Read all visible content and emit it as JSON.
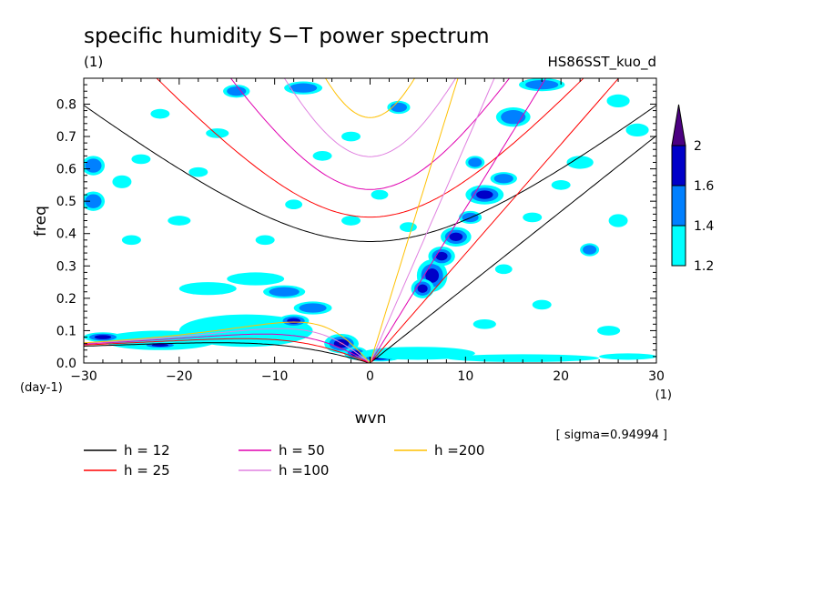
{
  "chart_data": {
    "type": "heatmap",
    "title": "specific humidity S−T power spectrum",
    "subtitle_left": "(1)",
    "subtitle_right": "HS86SST_kuo_d",
    "xlabel": "wvn",
    "ylabel": "freq",
    "x_unit": "(1)",
    "y_unit": "(day-1)",
    "sigma_note": "[ sigma=0.94994 ]",
    "xlim": [
      -30,
      30
    ],
    "ylim": [
      0,
      0.88
    ],
    "x_ticks": [
      {
        "v": -30,
        "label": "−30"
      },
      {
        "v": -20,
        "label": "−20"
      },
      {
        "v": -10,
        "label": "−10"
      },
      {
        "v": 0,
        "label": "0"
      },
      {
        "v": 10,
        "label": "10"
      },
      {
        "v": 20,
        "label": "20"
      },
      {
        "v": 30,
        "label": "30"
      }
    ],
    "y_ticks": [
      {
        "v": 0.0,
        "label": "0.0"
      },
      {
        "v": 0.1,
        "label": "0.1"
      },
      {
        "v": 0.2,
        "label": "0.2"
      },
      {
        "v": 0.3,
        "label": "0.3"
      },
      {
        "v": 0.4,
        "label": "0.4"
      },
      {
        "v": 0.5,
        "label": "0.5"
      },
      {
        "v": 0.6,
        "label": "0.6"
      },
      {
        "v": 0.7,
        "label": "0.7"
      },
      {
        "v": 0.8,
        "label": "0.8"
      }
    ],
    "colorbar": {
      "levels": [
        1.2,
        1.4,
        1.6,
        2
      ],
      "labels": [
        "1.2",
        "1.4",
        "1.6",
        "2"
      ],
      "colors": [
        "#00ffff",
        "#0080ff",
        "#0000c8",
        "#4b0082"
      ]
    },
    "dispersion_curves": [
      {
        "name": "h = 12",
        "h": 12,
        "color": "#000000"
      },
      {
        "name": "h = 25",
        "h": 25,
        "color": "#ff0000"
      },
      {
        "name": "h = 50",
        "h": 50,
        "color": "#e000b0"
      },
      {
        "name": "h =100",
        "h": 100,
        "color": "#e080e0"
      },
      {
        "name": "h =200",
        "h": 200,
        "color": "#ffc000"
      }
    ],
    "blobs": [
      {
        "x": 6.5,
        "y": 0.27,
        "rx": 1.6,
        "ry": 0.05,
        "level": 2
      },
      {
        "x": 5.5,
        "y": 0.23,
        "rx": 1.2,
        "ry": 0.03,
        "level": 2
      },
      {
        "x": 7.5,
        "y": 0.33,
        "rx": 1.4,
        "ry": 0.03,
        "level": 2
      },
      {
        "x": 9.0,
        "y": 0.39,
        "rx": 1.6,
        "ry": 0.03,
        "level": 2
      },
      {
        "x": 12.0,
        "y": 0.52,
        "rx": 2.0,
        "ry": 0.03,
        "level": 2
      },
      {
        "x": 10.5,
        "y": 0.45,
        "rx": 1.2,
        "ry": 0.02,
        "level": 1
      },
      {
        "x": 14.0,
        "y": 0.57,
        "rx": 1.4,
        "ry": 0.02,
        "level": 1
      },
      {
        "x": 11.0,
        "y": 0.62,
        "rx": 1.0,
        "ry": 0.02,
        "level": 1
      },
      {
        "x": 15.0,
        "y": 0.76,
        "rx": 1.8,
        "ry": 0.03,
        "level": 1
      },
      {
        "x": 18.0,
        "y": 0.86,
        "rx": 2.4,
        "ry": 0.02,
        "level": 1
      },
      {
        "x": -13.0,
        "y": 0.1,
        "rx": 7.0,
        "ry": 0.05,
        "level": 0
      },
      {
        "x": -22.0,
        "y": 0.07,
        "rx": 6.0,
        "ry": 0.03,
        "level": 0
      },
      {
        "x": -8.0,
        "y": 0.13,
        "rx": 1.6,
        "ry": 0.02,
        "level": 2
      },
      {
        "x": -9.0,
        "y": 0.22,
        "rx": 2.2,
        "ry": 0.02,
        "level": 1
      },
      {
        "x": -6.0,
        "y": 0.17,
        "rx": 2.0,
        "ry": 0.02,
        "level": 1
      },
      {
        "x": -12.0,
        "y": 0.26,
        "rx": 3.0,
        "ry": 0.02,
        "level": 0
      },
      {
        "x": -17.0,
        "y": 0.23,
        "rx": 3.0,
        "ry": 0.02,
        "level": 0
      },
      {
        "x": -28.0,
        "y": 0.08,
        "rx": 2.0,
        "ry": 0.015,
        "level": 2
      },
      {
        "x": -22.0,
        "y": 0.055,
        "rx": 2.0,
        "ry": 0.01,
        "level": 2
      },
      {
        "x": -3.0,
        "y": 0.06,
        "rx": 1.8,
        "ry": 0.03,
        "level": 3
      },
      {
        "x": -1.5,
        "y": 0.03,
        "rx": 1.2,
        "ry": 0.02,
        "level": 2
      },
      {
        "x": 1.0,
        "y": 0.015,
        "rx": 2.0,
        "ry": 0.01,
        "level": 2
      },
      {
        "x": 5.0,
        "y": 0.03,
        "rx": 6.0,
        "ry": 0.02,
        "level": 0
      },
      {
        "x": 16.0,
        "y": 0.015,
        "rx": 8.0,
        "ry": 0.012,
        "level": 0
      },
      {
        "x": 27.0,
        "y": 0.02,
        "rx": 3.0,
        "ry": 0.01,
        "level": 0
      },
      {
        "x": -14.0,
        "y": 0.84,
        "rx": 1.4,
        "ry": 0.02,
        "level": 1
      },
      {
        "x": -7.0,
        "y": 0.85,
        "rx": 2.0,
        "ry": 0.02,
        "level": 1
      },
      {
        "x": -29.0,
        "y": 0.5,
        "rx": 1.2,
        "ry": 0.03,
        "level": 1
      },
      {
        "x": -29.0,
        "y": 0.61,
        "rx": 1.2,
        "ry": 0.03,
        "level": 1
      },
      {
        "x": -26.0,
        "y": 0.56,
        "rx": 1.0,
        "ry": 0.02,
        "level": 0
      },
      {
        "x": -24.0,
        "y": 0.63,
        "rx": 1.0,
        "ry": 0.015,
        "level": 0
      },
      {
        "x": -18.0,
        "y": 0.59,
        "rx": 1.0,
        "ry": 0.015,
        "level": 0
      },
      {
        "x": -8.0,
        "y": 0.49,
        "rx": 0.9,
        "ry": 0.015,
        "level": 0
      },
      {
        "x": -5.0,
        "y": 0.64,
        "rx": 1.0,
        "ry": 0.015,
        "level": 0
      },
      {
        "x": -2.0,
        "y": 0.7,
        "rx": 1.0,
        "ry": 0.015,
        "level": 0
      },
      {
        "x": 1.0,
        "y": 0.52,
        "rx": 0.9,
        "ry": 0.015,
        "level": 0
      },
      {
        "x": 3.0,
        "y": 0.79,
        "rx": 1.2,
        "ry": 0.02,
        "level": 1
      },
      {
        "x": -11.0,
        "y": 0.38,
        "rx": 1.0,
        "ry": 0.015,
        "level": 0
      },
      {
        "x": -20.0,
        "y": 0.44,
        "rx": 1.2,
        "ry": 0.015,
        "level": 0
      },
      {
        "x": -25.0,
        "y": 0.38,
        "rx": 1.0,
        "ry": 0.015,
        "level": 0
      },
      {
        "x": 20.0,
        "y": 0.55,
        "rx": 1.0,
        "ry": 0.015,
        "level": 0
      },
      {
        "x": 23.0,
        "y": 0.35,
        "rx": 1.0,
        "ry": 0.02,
        "level": 1
      },
      {
        "x": 26.0,
        "y": 0.44,
        "rx": 1.0,
        "ry": 0.02,
        "level": 0
      },
      {
        "x": 22.0,
        "y": 0.62,
        "rx": 1.4,
        "ry": 0.02,
        "level": 0
      },
      {
        "x": 17.0,
        "y": 0.45,
        "rx": 1.0,
        "ry": 0.015,
        "level": 0
      },
      {
        "x": 12.0,
        "y": 0.12,
        "rx": 1.2,
        "ry": 0.015,
        "level": 0
      },
      {
        "x": 18.0,
        "y": 0.18,
        "rx": 1.0,
        "ry": 0.015,
        "level": 0
      },
      {
        "x": 25.0,
        "y": 0.1,
        "rx": 1.2,
        "ry": 0.015,
        "level": 0
      },
      {
        "x": -2.0,
        "y": 0.44,
        "rx": 1.0,
        "ry": 0.015,
        "level": 0
      },
      {
        "x": 4.0,
        "y": 0.42,
        "rx": 0.9,
        "ry": 0.015,
        "level": 0
      },
      {
        "x": 14.0,
        "y": 0.29,
        "rx": 0.9,
        "ry": 0.015,
        "level": 0
      },
      {
        "x": 28.0,
        "y": 0.72,
        "rx": 1.2,
        "ry": 0.02,
        "level": 0
      },
      {
        "x": 26.0,
        "y": 0.81,
        "rx": 1.2,
        "ry": 0.02,
        "level": 0
      },
      {
        "x": -16.0,
        "y": 0.71,
        "rx": 1.2,
        "ry": 0.015,
        "level": 0
      },
      {
        "x": -22.0,
        "y": 0.77,
        "rx": 1.0,
        "ry": 0.015,
        "level": 0
      }
    ]
  }
}
